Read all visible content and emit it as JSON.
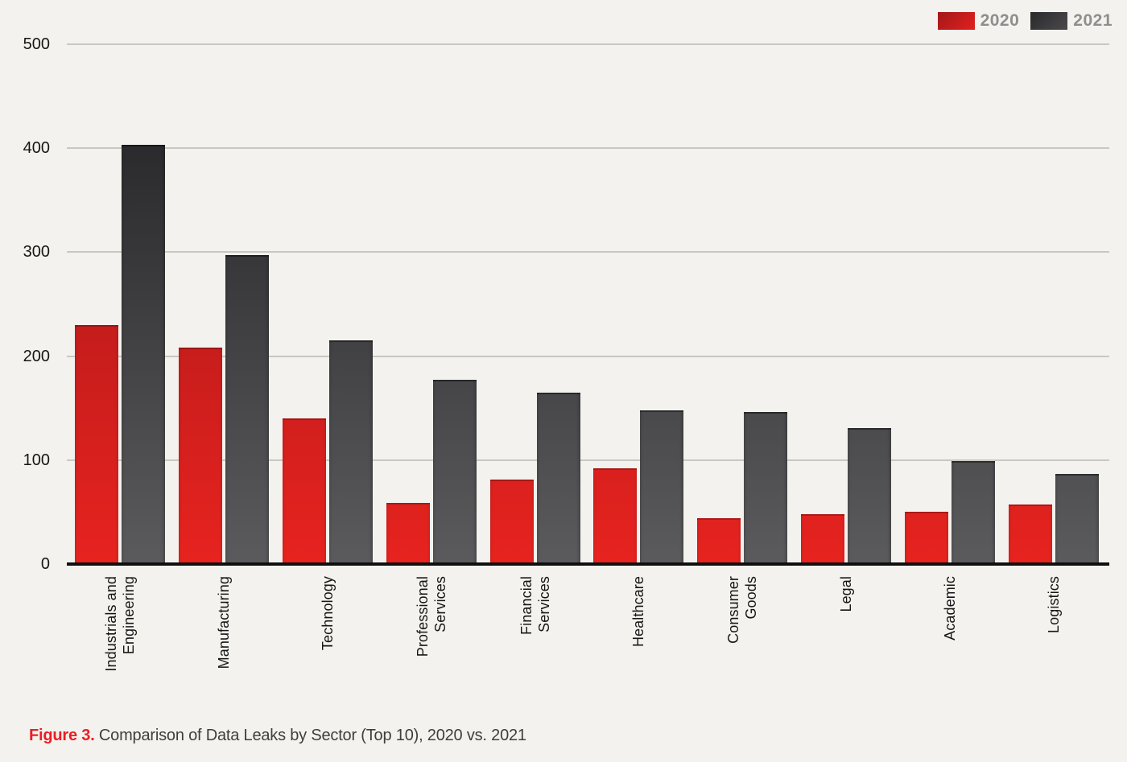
{
  "legend": [
    {
      "label": "2020",
      "color": "#d21e1e"
    },
    {
      "label": "2021",
      "color": "#3a3a3c"
    }
  ],
  "y_axis": {
    "ticks": [
      "500",
      "400",
      "300",
      "200",
      "100",
      "0"
    ],
    "max": 500
  },
  "chart_data": {
    "type": "bar",
    "categories": [
      [
        "Industrials and",
        "Engineering"
      ],
      [
        "Manufacturing"
      ],
      [
        "Technology"
      ],
      [
        "Professional",
        "Services"
      ],
      [
        "Financial",
        "Services"
      ],
      [
        "Healthcare"
      ],
      [
        "Consumer",
        "Goods"
      ],
      [
        "Legal"
      ],
      [
        "Academic"
      ],
      [
        "Logistics"
      ]
    ],
    "series": [
      {
        "name": "2020",
        "values": [
          230,
          208,
          140,
          59,
          81,
          92,
          44,
          48,
          50,
          57
        ]
      },
      {
        "name": "2021",
        "values": [
          403,
          297,
          215,
          177,
          165,
          148,
          146,
          131,
          99,
          87
        ]
      }
    ],
    "title": "",
    "xlabel": "",
    "ylabel": "",
    "ylim": [
      0,
      500
    ],
    "grid": true,
    "legend_position": "top-right"
  },
  "caption": {
    "prefix": "Figure 3.",
    "text": " Comparison of Data Leaks by Sector (Top 10), 2020 vs. 2021"
  },
  "colors": {
    "background": "#f3f2ee",
    "gridline": "#c9c7c2",
    "axis_line": "#0f0f0f",
    "bar_2020_top": "#9c1518",
    "bar_2020_bottom": "#e7231f",
    "bar_2021_top": "#1f1f21",
    "bar_2021_bottom": "#5b5b5d",
    "legend_text": "#8e8e8e",
    "tick_label": "#161616",
    "caption_accent": "#ec1c24",
    "caption_text": "#3e3e3e"
  }
}
